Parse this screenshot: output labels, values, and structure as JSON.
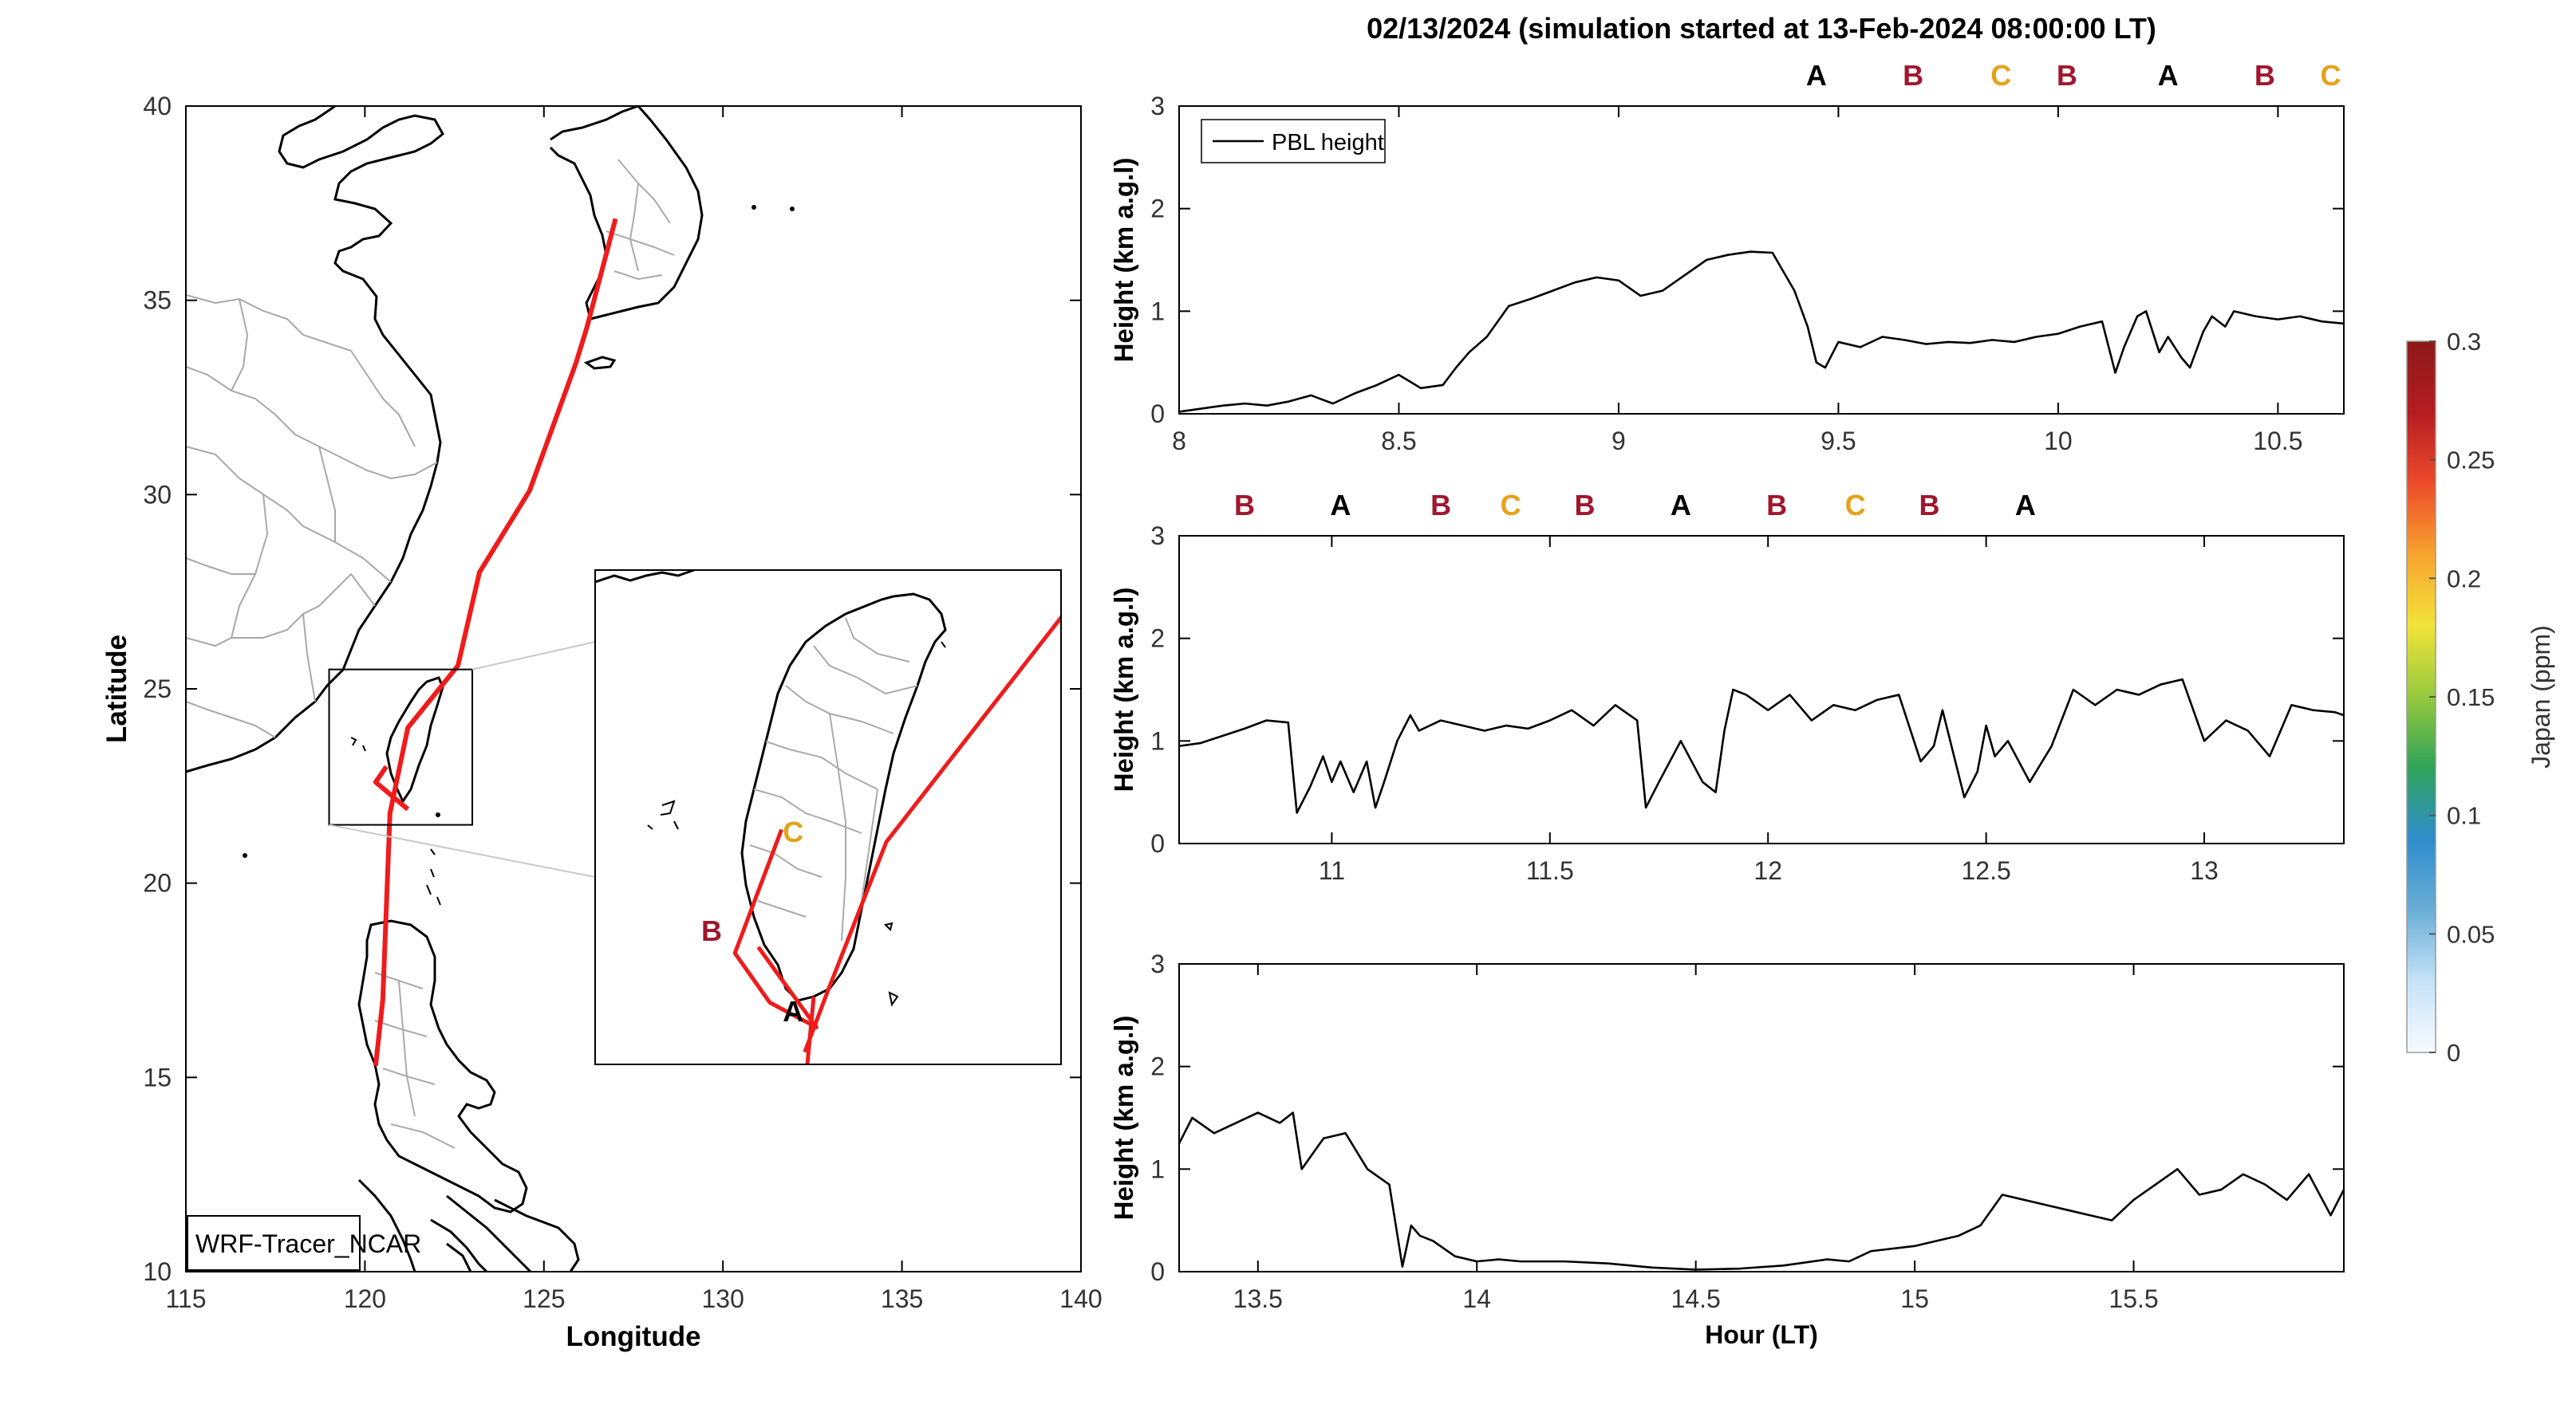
{
  "title": "02/13/2024 (simulation started at 13-Feb-2024 08:00:00 LT)",
  "colors": {
    "track": "#ee1c1c",
    "A": "#000000",
    "B": "#a0172e",
    "C": "#e5a21a"
  },
  "map": {
    "xlabel": "Longitude",
    "ylabel": "Latitude",
    "xticks": [
      "115",
      "120",
      "125",
      "130",
      "135",
      "140"
    ],
    "yticks": [
      "10",
      "15",
      "20",
      "25",
      "30",
      "35",
      "40"
    ],
    "xlim": [
      115,
      140
    ],
    "ylim": [
      10,
      40
    ],
    "model_label": "WRF-Tracer_NCAR",
    "inset_box": {
      "lon": [
        119,
        123
      ],
      "lat": [
        21.5,
        25.5
      ]
    },
    "track_main": [
      [
        127.0,
        37.1
      ],
      [
        126.2,
        34.3
      ],
      [
        125.9,
        33.4
      ],
      [
        124.6,
        30.1
      ],
      [
        123.2,
        28.0
      ],
      [
        122.6,
        25.6
      ],
      [
        121.2,
        24.0
      ],
      [
        120.7,
        21.8
      ],
      [
        120.5,
        17.0
      ],
      [
        120.3,
        15.3
      ]
    ],
    "track_coast": [
      [
        120.6,
        23.0
      ],
      [
        120.3,
        22.6
      ],
      [
        121.2,
        21.9
      ]
    ],
    "inset_labels": [
      {
        "text": "C",
        "lon": 120.7,
        "lat": 23.3,
        "group": "C"
      },
      {
        "text": "B",
        "lon": 120.0,
        "lat": 22.5,
        "group": "B"
      },
      {
        "text": "A",
        "lon": 120.7,
        "lat": 21.85,
        "group": "A"
      }
    ],
    "inset_track_main": [
      [
        123.4,
        25.6
      ],
      [
        121.5,
        23.3
      ],
      [
        121.0,
        22.1
      ],
      [
        120.8,
        21.6
      ]
    ],
    "inset_track_coast": [
      [
        120.6,
        23.4
      ],
      [
        120.2,
        22.4
      ],
      [
        120.5,
        22.0
      ],
      [
        120.9,
        21.8
      ],
      [
        120.4,
        22.45
      ]
    ]
  },
  "panels": [
    {
      "ylabel": "Height (km a.g.l)",
      "xlim": [
        8,
        10.65
      ],
      "ylim": [
        0,
        3
      ],
      "xticks": [
        "8",
        "8.5",
        "9",
        "9.5",
        "10",
        "10.5"
      ],
      "yticks": [
        "0",
        "1",
        "2",
        "3"
      ],
      "legend": "PBL height",
      "top_labels": [
        {
          "text": "A",
          "x": 9.45,
          "group": "A"
        },
        {
          "text": "B",
          "x": 9.67,
          "group": "B"
        },
        {
          "text": "C",
          "x": 9.87,
          "group": "C"
        },
        {
          "text": "B",
          "x": 10.02,
          "group": "B"
        },
        {
          "text": "A",
          "x": 10.25,
          "group": "A"
        },
        {
          "text": "B",
          "x": 10.47,
          "group": "B"
        },
        {
          "text": "C",
          "x": 10.62,
          "group": "C"
        }
      ]
    },
    {
      "ylabel": "Height (km a.g.l)",
      "xlim": [
        10.65,
        13.32
      ],
      "ylim": [
        0,
        3
      ],
      "xticks": [
        "11",
        "11.5",
        "12",
        "12.5",
        "13"
      ],
      "yticks": [
        "0",
        "1",
        "2",
        "3"
      ],
      "top_labels": [
        {
          "text": "B",
          "x": 10.8,
          "group": "B"
        },
        {
          "text": "A",
          "x": 11.02,
          "group": "A"
        },
        {
          "text": "B",
          "x": 11.25,
          "group": "B"
        },
        {
          "text": "C",
          "x": 11.41,
          "group": "C"
        },
        {
          "text": "B",
          "x": 11.58,
          "group": "B"
        },
        {
          "text": "A",
          "x": 11.8,
          "group": "A"
        },
        {
          "text": "B",
          "x": 12.02,
          "group": "B"
        },
        {
          "text": "C",
          "x": 12.2,
          "group": "C"
        },
        {
          "text": "B",
          "x": 12.37,
          "group": "B"
        },
        {
          "text": "A",
          "x": 12.59,
          "group": "A"
        }
      ]
    },
    {
      "ylabel": "Height (km a.g.l)",
      "xlabel": "Hour (LT)",
      "xlim": [
        13.32,
        15.98
      ],
      "ylim": [
        0,
        3
      ],
      "xticks": [
        "13.5",
        "14",
        "14.5",
        "15",
        "15.5"
      ],
      "yticks": [
        "0",
        "1",
        "2",
        "3"
      ],
      "top_labels": []
    }
  ],
  "chart_data": [
    {
      "type": "line",
      "series": [
        {
          "name": "PBL height",
          "x": [
            8.0,
            8.05,
            8.1,
            8.15,
            8.2,
            8.25,
            8.3,
            8.35,
            8.4,
            8.45,
            8.5,
            8.55,
            8.6,
            8.63,
            8.66,
            8.7,
            8.75,
            8.8,
            8.85,
            8.9,
            8.95,
            9.0,
            9.05,
            9.1,
            9.15,
            9.2,
            9.25,
            9.3,
            9.35,
            9.4,
            9.43,
            9.45,
            9.47,
            9.5,
            9.55,
            9.6,
            9.65,
            9.7,
            9.75,
            9.8,
            9.85,
            9.9,
            9.95,
            10.0,
            10.05,
            10.1,
            10.13,
            10.15,
            10.18,
            10.2,
            10.23,
            10.25,
            10.28,
            10.3,
            10.33,
            10.35,
            10.38,
            10.4,
            10.45,
            10.5,
            10.55,
            10.6,
            10.65
          ],
          "y": [
            0.02,
            0.05,
            0.08,
            0.1,
            0.08,
            0.12,
            0.18,
            0.1,
            0.2,
            0.28,
            0.38,
            0.25,
            0.28,
            0.45,
            0.6,
            0.75,
            1.05,
            1.12,
            1.2,
            1.28,
            1.33,
            1.3,
            1.15,
            1.2,
            1.35,
            1.5,
            1.55,
            1.58,
            1.57,
            1.2,
            0.85,
            0.5,
            0.45,
            0.7,
            0.65,
            0.75,
            0.72,
            0.68,
            0.7,
            0.69,
            0.72,
            0.7,
            0.75,
            0.78,
            0.85,
            0.9,
            0.4,
            0.65,
            0.95,
            1.0,
            0.6,
            0.75,
            0.55,
            0.45,
            0.8,
            0.95,
            0.85,
            1.0,
            0.95,
            0.92,
            0.95,
            0.9,
            0.88
          ]
        }
      ],
      "xlim": [
        8,
        10.65
      ],
      "ylim": [
        0,
        3
      ],
      "ylabel": "Height (km a.g.l)",
      "legend": "top-left"
    },
    {
      "type": "line",
      "series": [
        {
          "name": "PBL height",
          "x": [
            10.65,
            10.7,
            10.75,
            10.8,
            10.85,
            10.9,
            10.92,
            10.95,
            10.98,
            11.0,
            11.02,
            11.05,
            11.08,
            11.1,
            11.12,
            11.15,
            11.18,
            11.2,
            11.25,
            11.3,
            11.35,
            11.4,
            11.45,
            11.5,
            11.55,
            11.6,
            11.65,
            11.7,
            11.72,
            11.75,
            11.8,
            11.85,
            11.88,
            11.9,
            11.92,
            11.95,
            12.0,
            12.05,
            12.1,
            12.15,
            12.2,
            12.25,
            12.3,
            12.35,
            12.38,
            12.4,
            12.45,
            12.48,
            12.5,
            12.52,
            12.55,
            12.6,
            12.65,
            12.7,
            12.75,
            12.8,
            12.85,
            12.9,
            12.95,
            13.0,
            13.05,
            13.1,
            13.15,
            13.2,
            13.25,
            13.3,
            13.32
          ],
          "y": [
            0.95,
            0.98,
            1.05,
            1.12,
            1.2,
            1.18,
            0.3,
            0.55,
            0.85,
            0.6,
            0.8,
            0.5,
            0.8,
            0.35,
            0.6,
            1.0,
            1.25,
            1.1,
            1.2,
            1.15,
            1.1,
            1.15,
            1.12,
            1.2,
            1.3,
            1.15,
            1.35,
            1.2,
            0.35,
            0.6,
            1.0,
            0.6,
            0.5,
            1.1,
            1.5,
            1.45,
            1.3,
            1.45,
            1.2,
            1.35,
            1.3,
            1.4,
            1.45,
            0.8,
            0.95,
            1.3,
            0.45,
            0.7,
            1.15,
            0.85,
            1.0,
            0.6,
            0.95,
            1.5,
            1.35,
            1.5,
            1.45,
            1.55,
            1.6,
            1.0,
            1.2,
            1.1,
            0.85,
            1.35,
            1.3,
            1.28,
            1.25
          ]
        }
      ],
      "xlim": [
        10.65,
        13.32
      ],
      "ylim": [
        0,
        3
      ],
      "ylabel": "Height (km a.g.l)"
    },
    {
      "type": "line",
      "series": [
        {
          "name": "PBL height",
          "x": [
            13.32,
            13.35,
            13.4,
            13.45,
            13.5,
            13.55,
            13.58,
            13.6,
            13.65,
            13.7,
            13.75,
            13.8,
            13.83,
            13.85,
            13.87,
            13.9,
            13.95,
            14.0,
            14.05,
            14.1,
            14.2,
            14.3,
            14.4,
            14.5,
            14.6,
            14.7,
            14.8,
            14.85,
            14.9,
            15.0,
            15.05,
            15.1,
            15.15,
            15.2,
            15.25,
            15.3,
            15.35,
            15.4,
            15.45,
            15.5,
            15.55,
            15.6,
            15.65,
            15.7,
            15.75,
            15.8,
            15.85,
            15.9,
            15.95,
            15.98
          ],
          "y": [
            1.25,
            1.5,
            1.35,
            1.45,
            1.55,
            1.45,
            1.55,
            1.0,
            1.3,
            1.35,
            1.0,
            0.85,
            0.05,
            0.45,
            0.35,
            0.3,
            0.15,
            0.1,
            0.12,
            0.1,
            0.1,
            0.08,
            0.04,
            0.02,
            0.03,
            0.06,
            0.12,
            0.1,
            0.2,
            0.25,
            0.3,
            0.35,
            0.45,
            0.75,
            0.7,
            0.65,
            0.6,
            0.55,
            0.5,
            0.7,
            0.85,
            1.0,
            0.75,
            0.8,
            0.95,
            0.85,
            0.7,
            0.95,
            0.55,
            0.8
          ]
        }
      ],
      "xlim": [
        13.32,
        15.98
      ],
      "ylim": [
        0,
        3
      ],
      "xlabel": "Hour (LT)",
      "ylabel": "Height (km a.g.l)"
    }
  ],
  "colorbar": {
    "label": "Japan (ppm)",
    "ticks": [
      "0",
      "0.05",
      "0.1",
      "0.15",
      "0.2",
      "0.25",
      "0.3"
    ],
    "range": [
      0,
      0.3
    ],
    "stops": [
      "#f7fbff",
      "#c6e2f7",
      "#6aaed6",
      "#2e8dcb",
      "#2fa35a",
      "#96c93d",
      "#f2e33a",
      "#f7a42e",
      "#ec4b2a",
      "#b51c22",
      "#8b1a1a"
    ]
  }
}
